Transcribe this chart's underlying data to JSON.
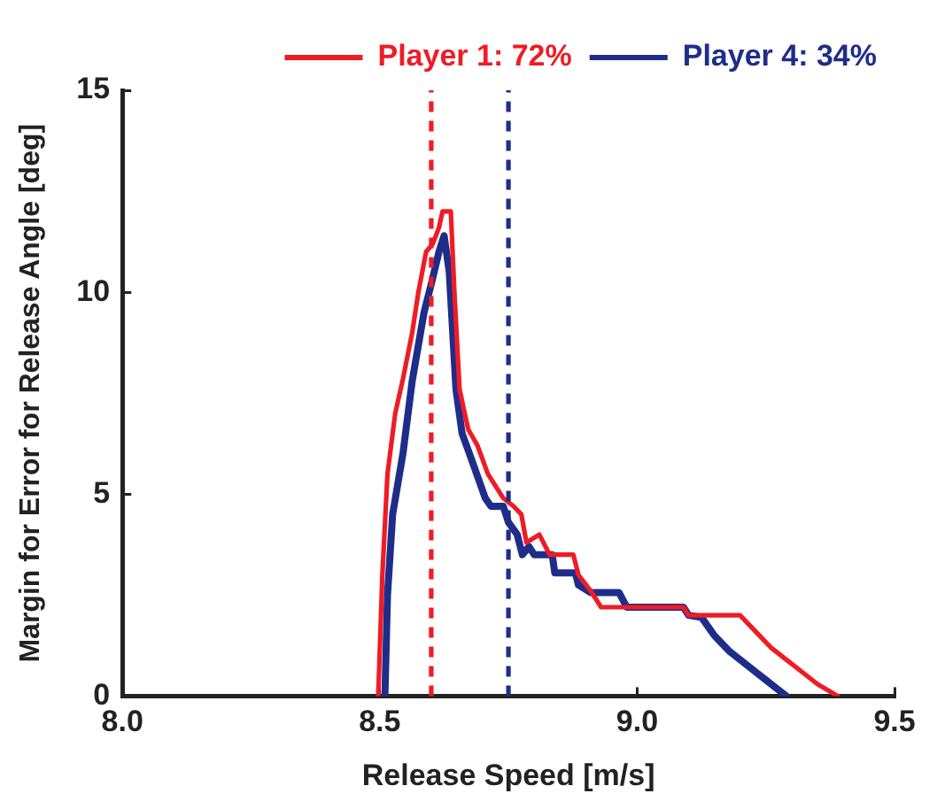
{
  "chart_data": {
    "type": "line",
    "xlabel": "Release Speed [m/s]",
    "ylabel": "Margin for Error for Release Angle [deg]",
    "xlim": [
      8.0,
      9.5
    ],
    "xticks": [
      {
        "value": 8,
        "label": "8.0"
      },
      8.5,
      {
        "value": 9,
        "label": "9.0"
      },
      9.5
    ],
    "ylim": [
      0,
      15
    ],
    "yticks": [
      0,
      5,
      10,
      15
    ],
    "grid": false,
    "legend": "top right",
    "marker": "none",
    "line_style": "solid",
    "ref_lines": [
      {
        "axis": "x",
        "value": 8.6,
        "color": "#ee1c25",
        "line_style": "dashed"
      },
      {
        "axis": "x",
        "value": 8.75,
        "color": "#1f2d8a",
        "line_style": "dashed"
      }
    ],
    "series": [
      {
        "name": "Player 1: 72%",
        "color": "#ee1c25",
        "x": [
          8.497,
          8.505,
          8.515,
          8.53,
          8.545,
          8.563,
          8.575,
          8.59,
          8.603,
          8.615,
          8.622,
          8.638,
          8.645,
          8.655,
          8.665,
          8.672,
          8.69,
          8.71,
          8.74,
          8.76,
          8.775,
          8.785,
          8.81,
          8.83,
          8.876,
          8.886,
          8.91,
          8.93,
          9.09,
          9.1,
          9.2,
          9.23,
          9.26,
          9.29,
          9.32,
          9.35,
          9.39
        ],
        "values": [
          0,
          3,
          5.5,
          7,
          7.85,
          9,
          10,
          11,
          11.2,
          11.6,
          12,
          12,
          10,
          7.6,
          7,
          6.6,
          6.2,
          5.5,
          4.9,
          4.7,
          4.5,
          3.8,
          4,
          3.5,
          3.5,
          3,
          2.6,
          2.2,
          2.2,
          2,
          2,
          1.6,
          1.2,
          0.9,
          0.6,
          0.3,
          0
        ]
      },
      {
        "name": "Player 4: 34%",
        "color": "#1f2d8a",
        "x": [
          8.51,
          8.515,
          8.525,
          8.545,
          8.563,
          8.586,
          8.6,
          8.615,
          8.625,
          8.635,
          8.648,
          8.66,
          8.68,
          8.705,
          8.716,
          8.74,
          8.75,
          8.767,
          8.777,
          8.79,
          8.8,
          8.835,
          8.84,
          8.88,
          8.886,
          8.91,
          8.965,
          8.98,
          9.09,
          9.1,
          9.125,
          9.15,
          9.18,
          9.21,
          9.24,
          9.27,
          9.29
        ],
        "values": [
          0,
          2.5,
          4.5,
          6,
          7.8,
          9.5,
          10.2,
          11,
          11.4,
          10.5,
          7.6,
          6.5,
          5.8,
          4.9,
          4.7,
          4.7,
          4.3,
          4,
          3.5,
          3.7,
          3.5,
          3.5,
          3.05,
          3.05,
          2.75,
          2.56,
          2.56,
          2.2,
          2.2,
          2,
          1.95,
          1.5,
          1.1,
          0.8,
          0.5,
          0.2,
          0
        ]
      }
    ]
  }
}
